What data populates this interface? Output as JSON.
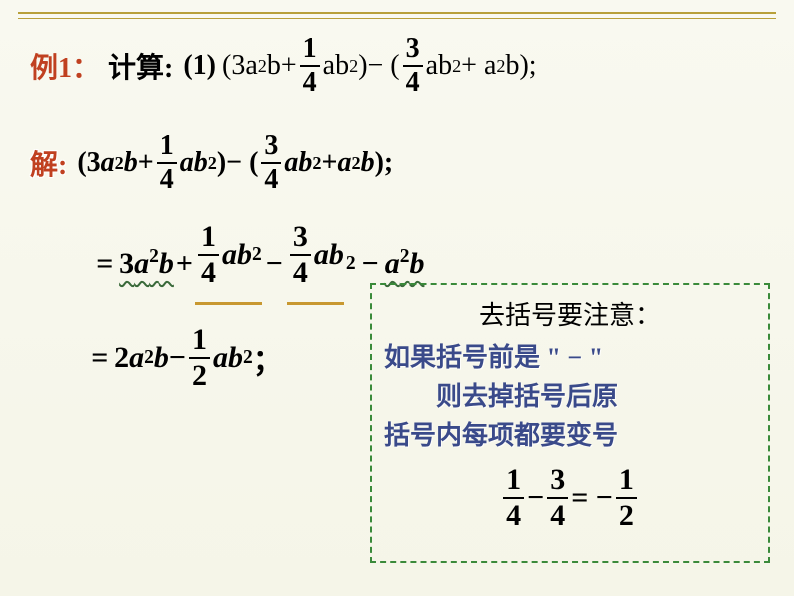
{
  "colors": {
    "accent_red": "#c04020",
    "accent_gold": "#b8a03a",
    "note_border": "#3a8a3a",
    "note_text": "#3a4a8a",
    "wavy_color": "#3a6a3a",
    "underline_color": "#c89830",
    "background": "#f9f9f0"
  },
  "typography": {
    "base_fontsize": 28,
    "step_fontsize": 30,
    "note_fontsize": 26
  },
  "header": {
    "example_label": "例1：",
    "calc_label": "计算:",
    "problem_number": "(1)"
  },
  "problem": {
    "lhs_open": "(3a",
    "term1_exp": "2",
    "term1_b": "b",
    "plus1": " + ",
    "frac1_num": "1",
    "frac1_den": "4",
    "term2": "ab",
    "term2_exp": "2",
    "close1": " )",
    "minus": " − (",
    "frac2_num": "3",
    "frac2_den": "4",
    "term3": "ab",
    "term3_exp": "2",
    "plus2": " + a",
    "term4_exp": "2",
    "close2": "b);"
  },
  "solution_label": "解:",
  "step1": {
    "open": "(3",
    "a": "a",
    "exp1": "2",
    "b1": "b",
    "plus1": " + ",
    "f1n": "1",
    "f1d": "4",
    "ab1": "ab",
    "exp2": "2",
    "close1": ")",
    "minus": " − (",
    "f2n": "3",
    "f2d": "4",
    "ab2": "ab",
    "exp3": "2",
    "plus2": " + ",
    "a2": "a",
    "exp4": "2",
    "b2": "b",
    "end": ");"
  },
  "step2": {
    "eq": "=",
    "t1": "3a",
    "e1": "2",
    "b1": "b",
    "plus": " + ",
    "f1n": "1",
    "f1d": "4",
    "ab1": "ab",
    "e2": "2",
    "minus1": "−",
    "f2n": "3",
    "f2d": "4",
    "ab2": "ab",
    "e3": "2",
    "minus2": "−",
    "a2": "a",
    "e4": "2",
    "b2": "b"
  },
  "step3": {
    "eq": "=",
    "t1": "2a",
    "e1": "2",
    "b1": "b",
    "minus": " − ",
    "f1n": "1",
    "f1d": "2",
    "ab": "ab",
    "e2": "2",
    "semi": "；"
  },
  "note": {
    "title": "去括号要注意：",
    "line1": "如果括号前是 \" − \"",
    "line2": "　　则去掉括号后原",
    "line3": "括号内每项都要变号",
    "calc_f1n": "1",
    "calc_f1d": "4",
    "calc_minus": " − ",
    "calc_f2n": "3",
    "calc_f2d": "4",
    "calc_eq": " = − ",
    "calc_f3n": "1",
    "calc_f3d": "2"
  }
}
